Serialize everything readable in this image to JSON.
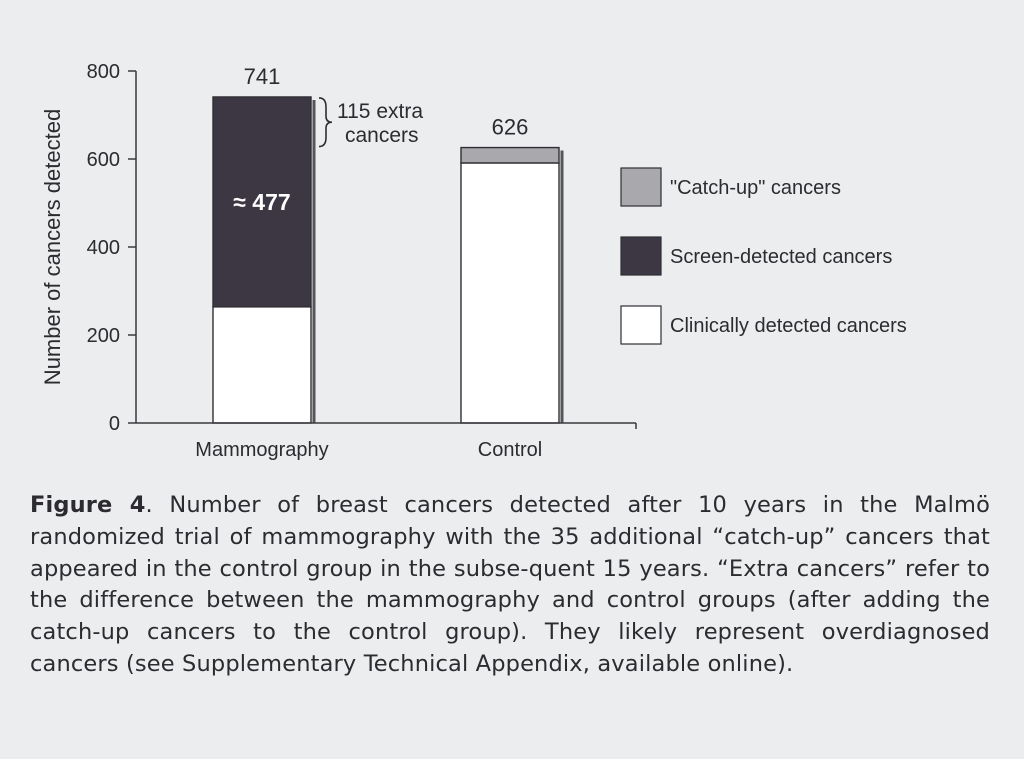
{
  "chart_data": {
    "type": "bar",
    "stacked": true,
    "categories": [
      "Mammography",
      "Control"
    ],
    "series": [
      {
        "name": "Clinically detected cancers",
        "values": [
          264,
          591
        ],
        "color": "#ffffff"
      },
      {
        "name": "Screen-detected cancers",
        "values": [
          477,
          0
        ],
        "color": "#3c3742"
      },
      {
        "name": "\"Catch-up\" cancers",
        "values": [
          0,
          35
        ],
        "color": "#a9a9ad"
      }
    ],
    "totals": [
      "741",
      "626"
    ],
    "ylabel": "Number of cancers detected",
    "xlabel": "",
    "ylim": [
      0,
      800
    ],
    "yticks": [
      0,
      200,
      400,
      600,
      800
    ],
    "legend_position": "right",
    "annotations": {
      "screen_label": "≈ 477",
      "extra_line1": "115 extra",
      "extra_line2": "cancers"
    }
  },
  "caption": {
    "label": "Figure 4",
    "text": ". Number of breast cancers detected after 10 years in the Malmö randomized trial of mammography with the 35 additional “catch-up” cancers that appeared in the control group in the subse-quent 15 years. “Extra cancers” refer to the difference between the mammography and control groups (after adding the catch-up cancers to the control group). They likely represent overdiagnosed cancers (see Supplementary Technical Appendix, available online)."
  }
}
